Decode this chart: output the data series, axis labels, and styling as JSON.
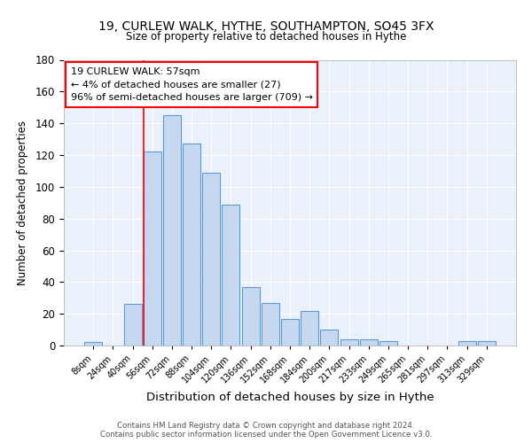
{
  "title1": "19, CURLEW WALK, HYTHE, SOUTHAMPTON, SO45 3FX",
  "title2": "Size of property relative to detached houses in Hythe",
  "xlabel": "Distribution of detached houses by size in Hythe",
  "ylabel": "Number of detached properties",
  "footer1": "Contains HM Land Registry data © Crown copyright and database right 2024.",
  "footer2": "Contains public sector information licensed under the Open Government Licence v3.0.",
  "categories": [
    "8sqm",
    "24sqm",
    "40sqm",
    "56sqm",
    "72sqm",
    "88sqm",
    "104sqm",
    "120sqm",
    "136sqm",
    "152sqm",
    "168sqm",
    "184sqm",
    "200sqm",
    "217sqm",
    "233sqm",
    "249sqm",
    "265sqm",
    "281sqm",
    "297sqm",
    "313sqm",
    "329sqm"
  ],
  "values": [
    2,
    0,
    26,
    122,
    145,
    127,
    109,
    89,
    37,
    27,
    17,
    22,
    10,
    4,
    4,
    3,
    0,
    0,
    0,
    3,
    3
  ],
  "bar_color": "#c5d8f0",
  "bar_edge_color": "#5b9bd5",
  "bg_color": "#eaf1fb",
  "annotation_line1": "19 CURLEW WALK: 57sqm",
  "annotation_line2": "← 4% of detached houses are smaller (27)",
  "annotation_line3": "96% of semi-detached houses are larger (709) →",
  "annotation_box_color": "white",
  "annotation_box_edge": "red",
  "ylim": [
    0,
    180
  ],
  "yticks": [
    0,
    20,
    40,
    60,
    80,
    100,
    120,
    140,
    160,
    180
  ]
}
